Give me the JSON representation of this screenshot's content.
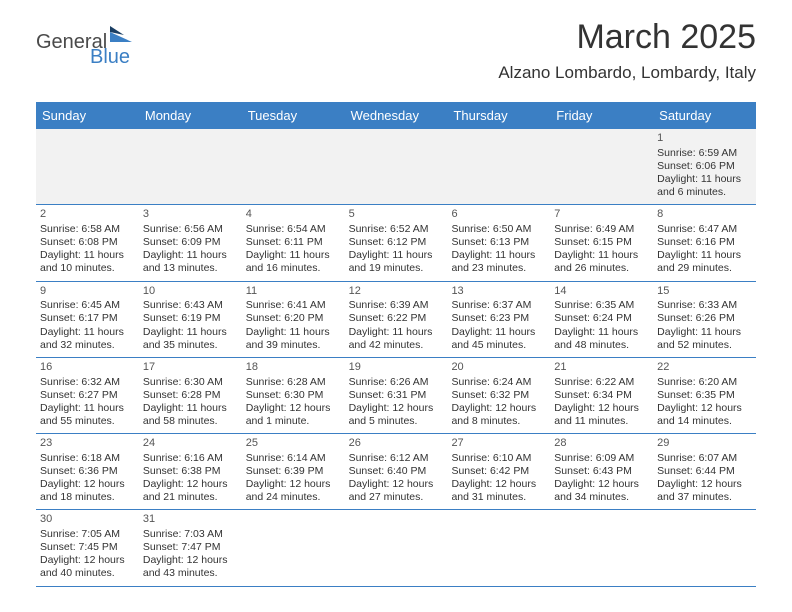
{
  "logo": {
    "part1": "General",
    "part2": "Blue"
  },
  "title": "March 2025",
  "location": "Alzano Lombardo, Lombardy, Italy",
  "colors": {
    "header_bg": "#3b7fc4",
    "header_text": "#ffffff",
    "border": "#3b7fc4",
    "firstweek_bg": "#f2f2f2",
    "text": "#333333",
    "logo_gray": "#4a4a4a",
    "logo_blue": "#3b7fc4"
  },
  "dayNames": [
    "Sunday",
    "Monday",
    "Tuesday",
    "Wednesday",
    "Thursday",
    "Friday",
    "Saturday"
  ],
  "weeks": [
    [
      null,
      null,
      null,
      null,
      null,
      null,
      {
        "n": "1",
        "sunrise": "6:59 AM",
        "sunset": "6:06 PM",
        "daylight": "11 hours and 6 minutes."
      }
    ],
    [
      {
        "n": "2",
        "sunrise": "6:58 AM",
        "sunset": "6:08 PM",
        "daylight": "11 hours and 10 minutes."
      },
      {
        "n": "3",
        "sunrise": "6:56 AM",
        "sunset": "6:09 PM",
        "daylight": "11 hours and 13 minutes."
      },
      {
        "n": "4",
        "sunrise": "6:54 AM",
        "sunset": "6:11 PM",
        "daylight": "11 hours and 16 minutes."
      },
      {
        "n": "5",
        "sunrise": "6:52 AM",
        "sunset": "6:12 PM",
        "daylight": "11 hours and 19 minutes."
      },
      {
        "n": "6",
        "sunrise": "6:50 AM",
        "sunset": "6:13 PM",
        "daylight": "11 hours and 23 minutes."
      },
      {
        "n": "7",
        "sunrise": "6:49 AM",
        "sunset": "6:15 PM",
        "daylight": "11 hours and 26 minutes."
      },
      {
        "n": "8",
        "sunrise": "6:47 AM",
        "sunset": "6:16 PM",
        "daylight": "11 hours and 29 minutes."
      }
    ],
    [
      {
        "n": "9",
        "sunrise": "6:45 AM",
        "sunset": "6:17 PM",
        "daylight": "11 hours and 32 minutes."
      },
      {
        "n": "10",
        "sunrise": "6:43 AM",
        "sunset": "6:19 PM",
        "daylight": "11 hours and 35 minutes."
      },
      {
        "n": "11",
        "sunrise": "6:41 AM",
        "sunset": "6:20 PM",
        "daylight": "11 hours and 39 minutes."
      },
      {
        "n": "12",
        "sunrise": "6:39 AM",
        "sunset": "6:22 PM",
        "daylight": "11 hours and 42 minutes."
      },
      {
        "n": "13",
        "sunrise": "6:37 AM",
        "sunset": "6:23 PM",
        "daylight": "11 hours and 45 minutes."
      },
      {
        "n": "14",
        "sunrise": "6:35 AM",
        "sunset": "6:24 PM",
        "daylight": "11 hours and 48 minutes."
      },
      {
        "n": "15",
        "sunrise": "6:33 AM",
        "sunset": "6:26 PM",
        "daylight": "11 hours and 52 minutes."
      }
    ],
    [
      {
        "n": "16",
        "sunrise": "6:32 AM",
        "sunset": "6:27 PM",
        "daylight": "11 hours and 55 minutes."
      },
      {
        "n": "17",
        "sunrise": "6:30 AM",
        "sunset": "6:28 PM",
        "daylight": "11 hours and 58 minutes."
      },
      {
        "n": "18",
        "sunrise": "6:28 AM",
        "sunset": "6:30 PM",
        "daylight": "12 hours and 1 minute."
      },
      {
        "n": "19",
        "sunrise": "6:26 AM",
        "sunset": "6:31 PM",
        "daylight": "12 hours and 5 minutes."
      },
      {
        "n": "20",
        "sunrise": "6:24 AM",
        "sunset": "6:32 PM",
        "daylight": "12 hours and 8 minutes."
      },
      {
        "n": "21",
        "sunrise": "6:22 AM",
        "sunset": "6:34 PM",
        "daylight": "12 hours and 11 minutes."
      },
      {
        "n": "22",
        "sunrise": "6:20 AM",
        "sunset": "6:35 PM",
        "daylight": "12 hours and 14 minutes."
      }
    ],
    [
      {
        "n": "23",
        "sunrise": "6:18 AM",
        "sunset": "6:36 PM",
        "daylight": "12 hours and 18 minutes."
      },
      {
        "n": "24",
        "sunrise": "6:16 AM",
        "sunset": "6:38 PM",
        "daylight": "12 hours and 21 minutes."
      },
      {
        "n": "25",
        "sunrise": "6:14 AM",
        "sunset": "6:39 PM",
        "daylight": "12 hours and 24 minutes."
      },
      {
        "n": "26",
        "sunrise": "6:12 AM",
        "sunset": "6:40 PM",
        "daylight": "12 hours and 27 minutes."
      },
      {
        "n": "27",
        "sunrise": "6:10 AM",
        "sunset": "6:42 PM",
        "daylight": "12 hours and 31 minutes."
      },
      {
        "n": "28",
        "sunrise": "6:09 AM",
        "sunset": "6:43 PM",
        "daylight": "12 hours and 34 minutes."
      },
      {
        "n": "29",
        "sunrise": "6:07 AM",
        "sunset": "6:44 PM",
        "daylight": "12 hours and 37 minutes."
      }
    ],
    [
      {
        "n": "30",
        "sunrise": "7:05 AM",
        "sunset": "7:45 PM",
        "daylight": "12 hours and 40 minutes."
      },
      {
        "n": "31",
        "sunrise": "7:03 AM",
        "sunset": "7:47 PM",
        "daylight": "12 hours and 43 minutes."
      },
      null,
      null,
      null,
      null,
      null
    ]
  ]
}
